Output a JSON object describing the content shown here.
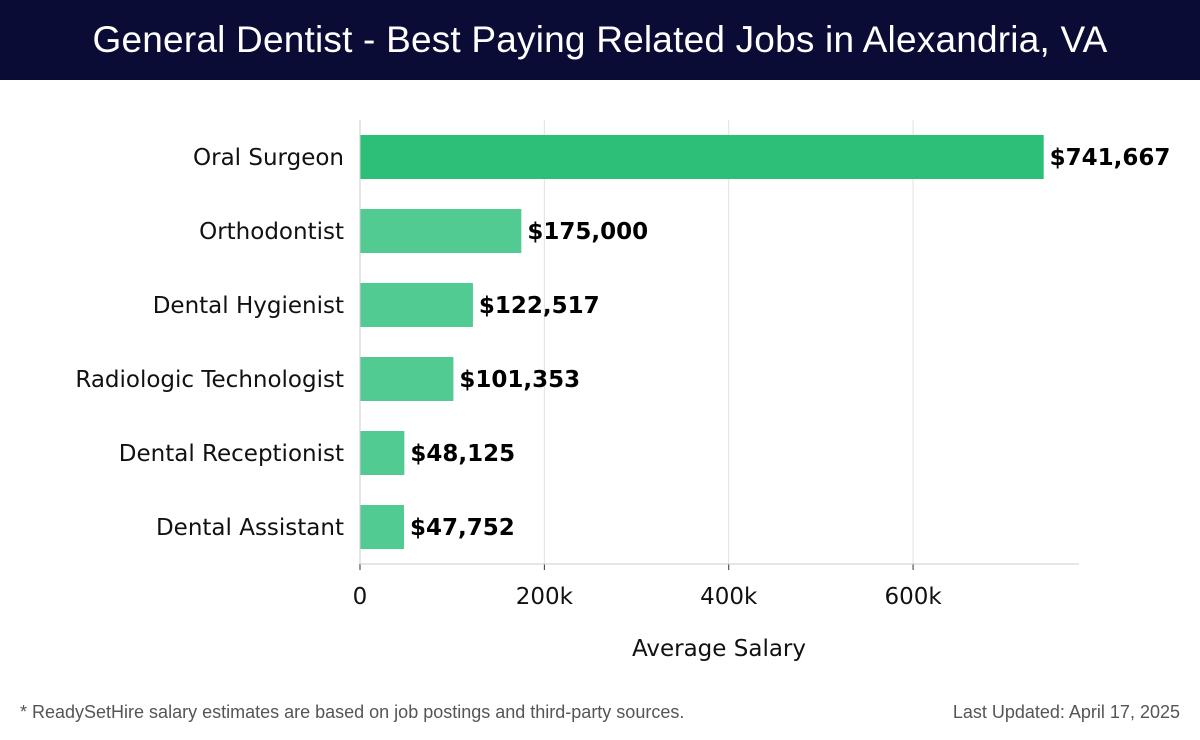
{
  "header": {
    "title": "General Dentist - Best Paying Related Jobs in Alexandria, VA"
  },
  "chart_data": {
    "type": "bar",
    "orientation": "horizontal",
    "title": "General Dentist - Best Paying Related Jobs in Alexandria, VA",
    "categories": [
      "Oral Surgeon",
      "Orthodontist",
      "Dental Hygienist",
      "Radiologic Technologist",
      "Dental Receptionist",
      "Dental Assistant"
    ],
    "values": [
      741667,
      175000,
      122517,
      101353,
      48125,
      47752
    ],
    "value_labels": [
      "$741,667",
      "$175,000",
      "$122,517",
      "$101,353",
      "$48,125",
      "$47,752"
    ],
    "xlabel": "Average Salary",
    "ylabel": "",
    "xlim": [
      0,
      780000
    ],
    "xticks": [
      0,
      200000,
      400000,
      600000
    ],
    "xtick_labels": [
      "0",
      "200k",
      "400k",
      "600k"
    ],
    "grid": true,
    "colors": {
      "highlight_bar": "#2cbf78",
      "bar": "#52cb92",
      "grid": "#e0e0e0",
      "axis": "#cccccc"
    }
  },
  "footer": {
    "note": "* ReadySetHire salary estimates are based on job postings and third-party sources.",
    "updated": "Last Updated: April 17, 2025"
  }
}
